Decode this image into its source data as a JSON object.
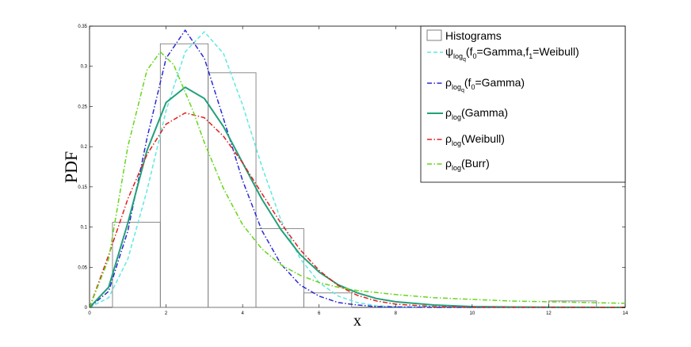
{
  "chart_data": {
    "type": "line",
    "title": "",
    "xlabel": "x",
    "ylabel": "PDF",
    "xlim": [
      0,
      14
    ],
    "ylim": [
      0,
      0.35
    ],
    "x_ticks": [
      "0",
      "2",
      "4",
      "6",
      "8",
      "10",
      "12",
      "14"
    ],
    "y_ticks": [
      "0",
      "0.05",
      "0.1",
      "0.15",
      "0.2",
      "0.25",
      "0.3",
      "0.35"
    ],
    "legend_position": "top-right",
    "histogram": {
      "name": "Histograms",
      "color": "#7f7f7f",
      "bins": [
        {
          "x0": 0.6,
          "x1": 1.85,
          "height": 0.106
        },
        {
          "x0": 1.85,
          "x1": 3.1,
          "height": 0.328
        },
        {
          "x0": 3.1,
          "x1": 4.35,
          "height": 0.292
        },
        {
          "x0": 4.35,
          "x1": 5.6,
          "height": 0.098
        },
        {
          "x0": 5.6,
          "x1": 6.85,
          "height": 0.018
        },
        {
          "x0": 12.0,
          "x1": 13.25,
          "height": 0.008
        }
      ]
    },
    "series": [
      {
        "name_main": "ψ",
        "name_sub": "log",
        "name_subsub": "q",
        "name_rest": "(f",
        "name_rest_sub": "0",
        "name_rest2": "=Gamma,f",
        "name_rest2_sub": "1",
        "name_rest3": "=Weibull)",
        "color": "#5fe8e0",
        "style": "dashed",
        "x": [
          0,
          0.5,
          1.0,
          1.5,
          2.0,
          2.5,
          3.0,
          3.5,
          4.0,
          4.5,
          5.0,
          5.5,
          6.0,
          6.5,
          7.0,
          7.5,
          8.0,
          9.0,
          10.0,
          12.0,
          14.0
        ],
        "y": [
          0,
          0.012,
          0.06,
          0.145,
          0.245,
          0.318,
          0.343,
          0.316,
          0.252,
          0.176,
          0.109,
          0.061,
          0.031,
          0.014,
          0.006,
          0.002,
          0.001,
          0,
          0,
          0,
          0
        ]
      },
      {
        "name_main": "ρ",
        "name_sub": "log",
        "name_subsub": "q",
        "name_rest": "(f",
        "name_rest_sub": "0",
        "name_rest2": "=Gamma)",
        "name_rest2_sub": "",
        "name_rest3": "",
        "color": "#2a2ad4",
        "style": "dashdot",
        "x": [
          0,
          0.5,
          1.0,
          1.5,
          2.0,
          2.5,
          3.0,
          3.5,
          4.0,
          4.5,
          5.0,
          5.5,
          6.0,
          6.5,
          7.0,
          7.5,
          8.0,
          9.0,
          10.0,
          12.0,
          14.0
        ],
        "y": [
          0,
          0.02,
          0.095,
          0.21,
          0.31,
          0.345,
          0.31,
          0.235,
          0.158,
          0.096,
          0.054,
          0.028,
          0.014,
          0.006,
          0.003,
          0.001,
          0.0005,
          0,
          0,
          0,
          0
        ]
      },
      {
        "name_main": "ρ",
        "name_sub": "log",
        "name_subsub": "",
        "name_rest": "(Gamma)",
        "name_rest_sub": "",
        "name_rest2": "",
        "name_rest2_sub": "",
        "name_rest3": "",
        "color": "#22a07a",
        "style": "solid",
        "x": [
          0,
          0.5,
          1.0,
          1.5,
          2.0,
          2.5,
          3.0,
          3.5,
          4.0,
          4.5,
          5.0,
          5.5,
          6.0,
          6.5,
          7.0,
          7.5,
          8.0,
          9.0,
          10.0,
          11.0,
          12.0,
          13.0,
          14.0
        ],
        "y": [
          0,
          0.025,
          0.105,
          0.195,
          0.255,
          0.274,
          0.26,
          0.225,
          0.18,
          0.135,
          0.097,
          0.066,
          0.044,
          0.028,
          0.018,
          0.011,
          0.007,
          0.003,
          0.001,
          0.0005,
          0.0002,
          0.0001,
          0
        ]
      },
      {
        "name_main": "ρ",
        "name_sub": "log",
        "name_subsub": "",
        "name_rest": "(Weibull)",
        "name_rest_sub": "",
        "name_rest2": "",
        "name_rest2_sub": "",
        "name_rest3": "",
        "color": "#e02020",
        "style": "dashdot",
        "x": [
          0,
          0.5,
          1.0,
          1.5,
          2.0,
          2.5,
          3.0,
          3.5,
          4.0,
          4.5,
          5.0,
          5.5,
          6.0,
          6.5,
          7.0,
          7.5,
          8.0,
          9.0,
          10.0,
          12.0,
          14.0
        ],
        "y": [
          0,
          0.065,
          0.135,
          0.19,
          0.228,
          0.242,
          0.236,
          0.213,
          0.18,
          0.142,
          0.105,
          0.072,
          0.046,
          0.027,
          0.015,
          0.008,
          0.004,
          0.001,
          0,
          0,
          0
        ]
      },
      {
        "name_main": "ρ",
        "name_sub": "log",
        "name_subsub": "",
        "name_rest": "(Burr)",
        "name_rest_sub": "",
        "name_rest2": "",
        "name_rest2_sub": "",
        "name_rest3": "",
        "color": "#66d61a",
        "style": "dashdot",
        "x": [
          0,
          0.5,
          1.0,
          1.5,
          1.85,
          2.2,
          2.7,
          3.0,
          3.5,
          4.0,
          4.5,
          5.0,
          5.5,
          6.0,
          6.5,
          7.0,
          8.0,
          9.0,
          10.0,
          11.0,
          12.0,
          13.0,
          14.0
        ],
        "y": [
          0,
          0.06,
          0.2,
          0.295,
          0.318,
          0.302,
          0.245,
          0.205,
          0.148,
          0.103,
          0.073,
          0.053,
          0.04,
          0.031,
          0.025,
          0.021,
          0.016,
          0.012,
          0.01,
          0.008,
          0.007,
          0.006,
          0.005
        ]
      }
    ]
  }
}
